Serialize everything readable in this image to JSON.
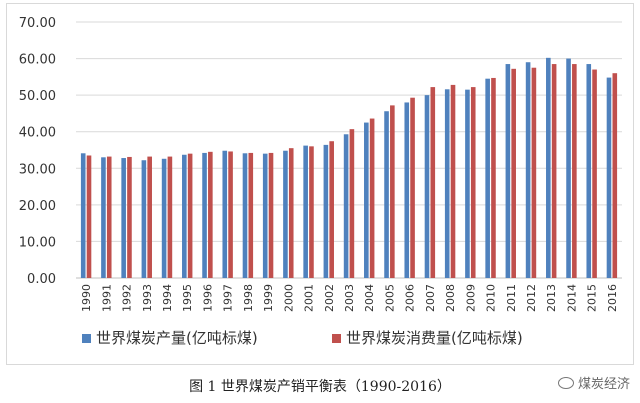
{
  "chart_data": {
    "type": "bar",
    "categories": [
      "1990",
      "1991",
      "1992",
      "1993",
      "1994",
      "1995",
      "1996",
      "1997",
      "1998",
      "1999",
      "2000",
      "2001",
      "2002",
      "2003",
      "2004",
      "2005",
      "2006",
      "2007",
      "2008",
      "2009",
      "2010",
      "2011",
      "2012",
      "2013",
      "2014",
      "2015",
      "2016"
    ],
    "series": [
      {
        "name": "世界煤炭产量(亿吨标煤)",
        "color": "#4f81bd",
        "values": [
          34.1,
          33.0,
          32.8,
          32.2,
          32.6,
          33.7,
          34.2,
          34.8,
          34.1,
          34.0,
          34.8,
          36.2,
          36.4,
          39.3,
          42.5,
          45.6,
          48.0,
          50.0,
          51.6,
          51.5,
          54.5,
          58.5,
          59.0,
          60.2,
          60.0,
          58.5,
          54.8
        ]
      },
      {
        "name": "世界煤炭消费量(亿吨标煤)",
        "color": "#c0504d",
        "values": [
          33.5,
          33.2,
          33.1,
          33.2,
          33.2,
          34.0,
          34.5,
          34.6,
          34.2,
          34.2,
          35.5,
          36.0,
          37.4,
          40.7,
          43.6,
          47.2,
          49.3,
          52.2,
          52.8,
          52.2,
          54.7,
          57.2,
          57.5,
          58.5,
          58.5,
          57.0,
          56.0
        ]
      }
    ],
    "yticks": [
      "0.00",
      "10.00",
      "20.00",
      "30.00",
      "40.00",
      "50.00",
      "60.00",
      "70.00"
    ],
    "ylim": [
      0,
      70
    ],
    "grid": true,
    "legend": "bottom-left"
  },
  "caption": "图 1  世界煤炭产销平衡表（1990-2016）",
  "watermark": "煤炭经济"
}
